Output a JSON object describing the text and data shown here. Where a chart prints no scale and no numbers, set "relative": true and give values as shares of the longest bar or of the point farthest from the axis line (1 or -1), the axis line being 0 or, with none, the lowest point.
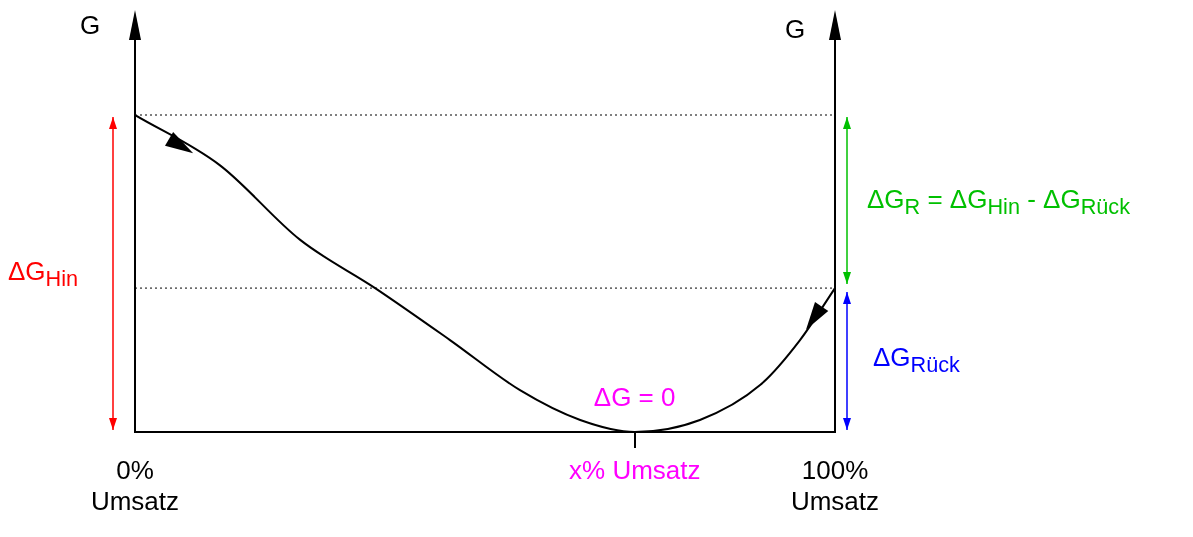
{
  "chart_data": {
    "type": "line",
    "relative": true,
    "ylabel": "G",
    "y2label": "G",
    "x": [
      0,
      12.1,
      23.6,
      34.3,
      45,
      55,
      63.6,
      71.4,
      80.7,
      89.3,
      95,
      100
    ],
    "series": [
      {
        "color": "#000000",
        "values": [
          1,
          0.842,
          0.606,
          0.454,
          0.29,
          0.132,
          0.038,
          0,
          0.038,
          0.148,
          0.29,
          0.454
        ]
      }
    ],
    "xlim": [
      0,
      100
    ],
    "xticks": [
      {
        "value": 0,
        "label": "0% Umsatz"
      },
      {
        "value": 71.4,
        "label": "x% Umsatz"
      },
      {
        "value": 100,
        "label": "100% Umsatz"
      }
    ],
    "ref_lines": [
      {
        "axis": "y",
        "value": 1,
        "color": "#000000",
        "line_style": "dotted"
      },
      {
        "axis": "y",
        "value": 0.454,
        "color": "#000000",
        "line_style": "dotted"
      }
    ],
    "annotations": [
      {
        "text": "ΔG = 0",
        "x": 71.4,
        "y": 0
      },
      "ΔG$_{Hin}$",
      "ΔG$_{R}$ = ΔG$_{Hin}$ - ΔG$_{Rück}$",
      "ΔG$_{Rück}$"
    ],
    "grid": false,
    "legend": false,
    "marker": "none",
    "line_style": "solid"
  }
}
